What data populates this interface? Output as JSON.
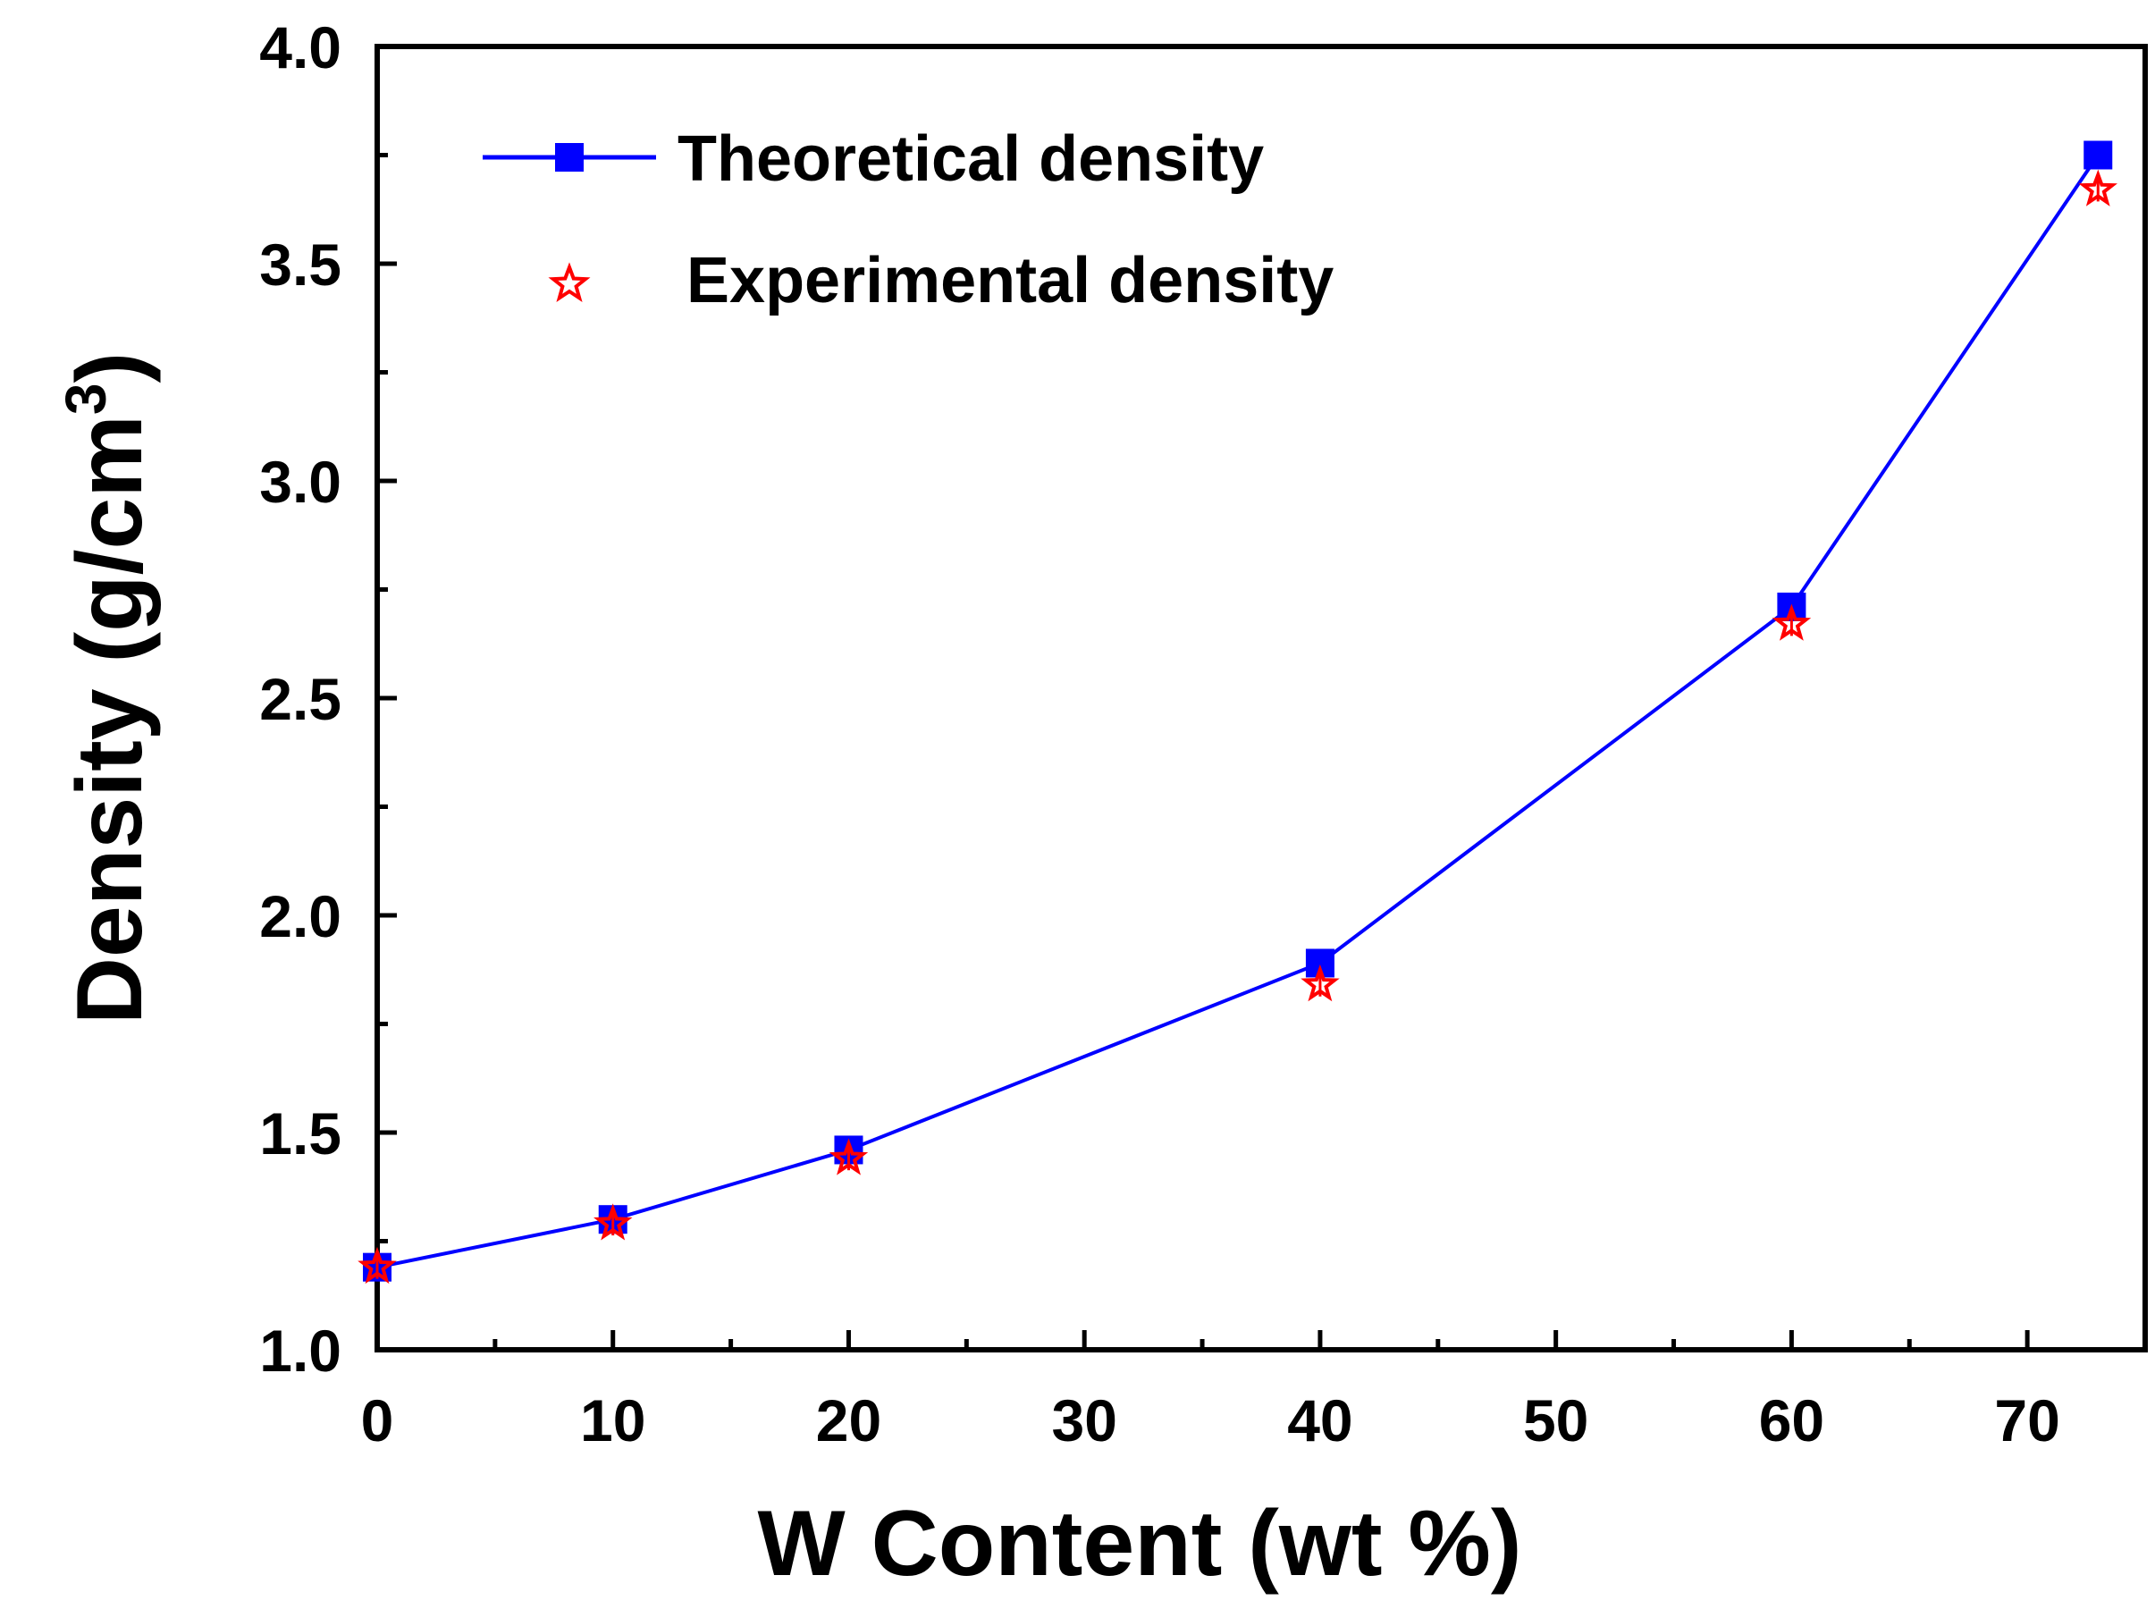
{
  "chart_data": {
    "type": "line",
    "title": "",
    "xlabel": "W Content (wt %)",
    "ylabel_main": "Density (g/cm",
    "ylabel_sup": "3",
    "ylabel_close": ")",
    "xlim": [
      0,
      75
    ],
    "ylim": [
      1.0,
      4.0
    ],
    "x_ticks": [
      0,
      10,
      20,
      30,
      40,
      50,
      60,
      70
    ],
    "x_tick_labels": [
      "0",
      "10",
      "20",
      "30",
      "40",
      "50",
      "60",
      "70"
    ],
    "y_ticks": [
      1.0,
      1.5,
      2.0,
      2.5,
      3.0,
      3.5,
      4.0
    ],
    "y_tick_labels": [
      "1.0",
      "1.5",
      "2.0",
      "2.5",
      "3.0",
      "3.5",
      "4.0"
    ],
    "grid": false,
    "legend_position": "top-left",
    "series": [
      {
        "name": "Theoretical density",
        "marker": "square",
        "line": true,
        "color": "#0000ff",
        "x": [
          0,
          10,
          20,
          40,
          60,
          73
        ],
        "y": [
          1.19,
          1.3,
          1.46,
          1.89,
          2.71,
          3.75
        ]
      },
      {
        "name": "Experimental density",
        "marker": "star",
        "line": false,
        "color": "#ff0000",
        "x": [
          0,
          10,
          20,
          40,
          60,
          73
        ],
        "y": [
          1.19,
          1.29,
          1.44,
          1.84,
          2.67,
          3.67
        ]
      }
    ]
  }
}
